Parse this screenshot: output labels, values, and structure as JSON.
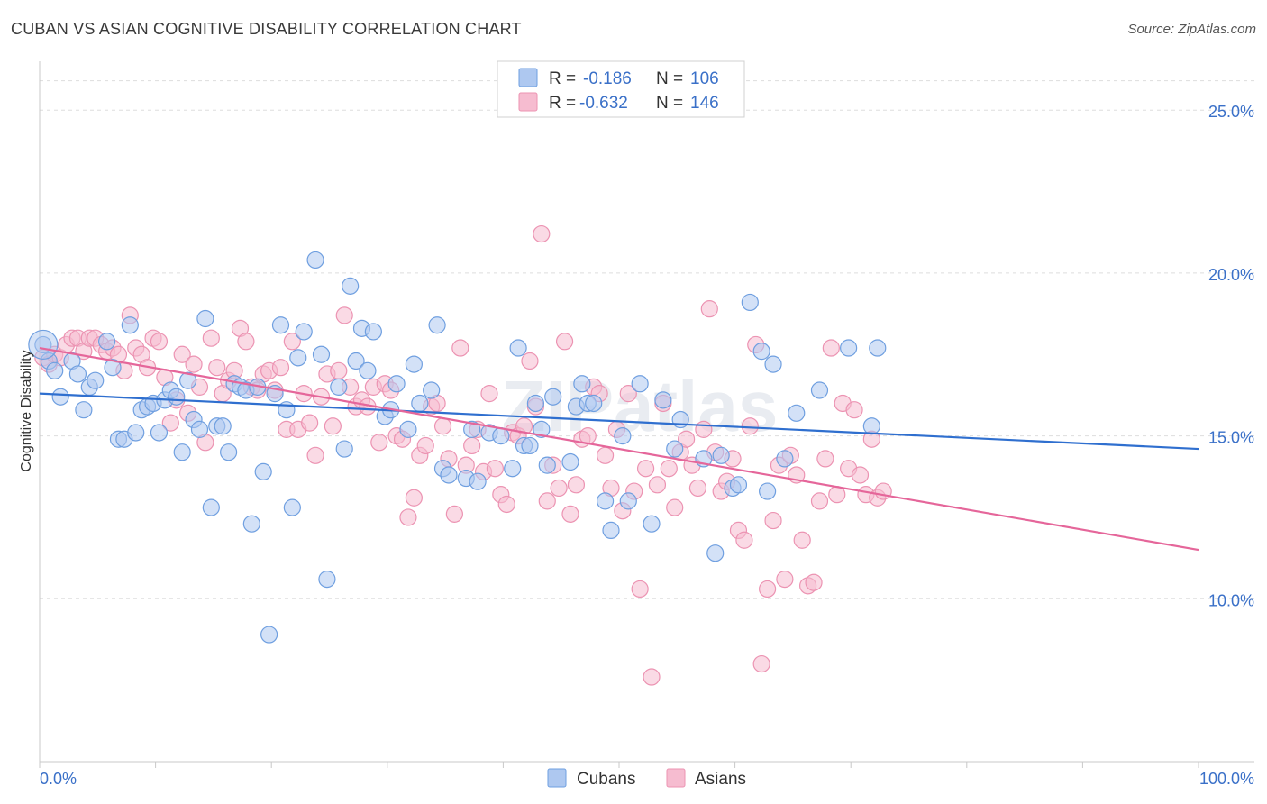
{
  "header": {
    "title": "CUBAN VS ASIAN COGNITIVE DISABILITY CORRELATION CHART",
    "source": "Source: ZipAtlas.com"
  },
  "colors": {
    "cubans_fill": "#aec8f0",
    "cubans_stroke": "#6f9fe0",
    "cubans_line": "#2f6fcf",
    "asians_fill": "#f6bcd0",
    "asians_stroke": "#ec93b2",
    "asians_line": "#e5669a",
    "tick_label": "#3a70c8",
    "grid": "#dddddd"
  },
  "legend": {
    "rows": [
      {
        "r_label": "R =",
        "r_value": "-0.186",
        "n_label": "N =",
        "n_value": "106"
      },
      {
        "r_label": "R =",
        "r_value": "-0.632",
        "n_label": "N =",
        "n_value": "146"
      }
    ]
  },
  "chart_data": {
    "type": "scatter",
    "title": "CUBAN VS ASIAN COGNITIVE DISABILITY CORRELATION CHART",
    "xlabel": "",
    "ylabel": "Cognitive Disability",
    "xlim": [
      0,
      100
    ],
    "ylim": [
      5,
      26.5
    ],
    "x_tick_labels": [
      "0.0%",
      "100.0%"
    ],
    "y_ticks": [
      10,
      15,
      20,
      25
    ],
    "y_tick_labels": [
      "10.0%",
      "15.0%",
      "20.0%",
      "25.0%"
    ],
    "grid": true,
    "legend_position": "top-center",
    "watermark": "ZIPatlas",
    "series": [
      {
        "name": "Cubans",
        "r": -0.186,
        "n": 106,
        "trend": [
          [
            0,
            16.3
          ],
          [
            100,
            14.6
          ]
        ],
        "points": [
          [
            0.3,
            17.8
          ],
          [
            0.8,
            17.3
          ],
          [
            1.3,
            17.0
          ],
          [
            1.8,
            16.2
          ],
          [
            2.8,
            17.3
          ],
          [
            3.3,
            16.9
          ],
          [
            3.8,
            15.8
          ],
          [
            4.3,
            16.5
          ],
          [
            4.8,
            16.7
          ],
          [
            5.8,
            17.9
          ],
          [
            6.3,
            17.1
          ],
          [
            6.8,
            14.9
          ],
          [
            7.3,
            14.9
          ],
          [
            7.8,
            18.4
          ],
          [
            8.3,
            15.1
          ],
          [
            8.8,
            15.8
          ],
          [
            9.3,
            15.9
          ],
          [
            9.8,
            16.0
          ],
          [
            10.3,
            15.1
          ],
          [
            10.8,
            16.1
          ],
          [
            11.3,
            16.4
          ],
          [
            11.8,
            16.2
          ],
          [
            12.3,
            14.5
          ],
          [
            12.8,
            16.7
          ],
          [
            13.3,
            15.5
          ],
          [
            13.8,
            15.2
          ],
          [
            14.3,
            18.6
          ],
          [
            14.8,
            12.8
          ],
          [
            15.3,
            15.3
          ],
          [
            15.8,
            15.3
          ],
          [
            16.3,
            14.5
          ],
          [
            16.8,
            16.6
          ],
          [
            17.3,
            16.5
          ],
          [
            17.8,
            16.4
          ],
          [
            18.3,
            12.3
          ],
          [
            18.8,
            16.5
          ],
          [
            19.3,
            13.9
          ],
          [
            19.8,
            8.9
          ],
          [
            20.3,
            16.3
          ],
          [
            20.8,
            18.4
          ],
          [
            21.3,
            15.8
          ],
          [
            21.8,
            12.8
          ],
          [
            22.3,
            17.4
          ],
          [
            22.8,
            18.2
          ],
          [
            23.8,
            20.4
          ],
          [
            24.3,
            17.5
          ],
          [
            24.8,
            10.6
          ],
          [
            25.8,
            16.5
          ],
          [
            26.3,
            14.6
          ],
          [
            26.8,
            19.6
          ],
          [
            27.3,
            17.3
          ],
          [
            27.8,
            18.3
          ],
          [
            28.3,
            17.0
          ],
          [
            28.8,
            18.2
          ],
          [
            29.8,
            15.6
          ],
          [
            30.3,
            15.8
          ],
          [
            30.8,
            16.6
          ],
          [
            31.8,
            15.2
          ],
          [
            32.3,
            17.2
          ],
          [
            32.8,
            16.0
          ],
          [
            33.8,
            16.4
          ],
          [
            34.3,
            18.4
          ],
          [
            34.8,
            14.0
          ],
          [
            35.3,
            13.8
          ],
          [
            36.8,
            13.7
          ],
          [
            37.3,
            15.2
          ],
          [
            37.8,
            13.6
          ],
          [
            38.8,
            15.1
          ],
          [
            39.8,
            15.0
          ],
          [
            40.8,
            14.0
          ],
          [
            41.3,
            17.7
          ],
          [
            41.8,
            14.7
          ],
          [
            42.3,
            14.7
          ],
          [
            42.8,
            16.0
          ],
          [
            43.3,
            15.2
          ],
          [
            43.8,
            14.1
          ],
          [
            44.3,
            16.2
          ],
          [
            45.8,
            14.2
          ],
          [
            46.3,
            15.9
          ],
          [
            46.8,
            16.6
          ],
          [
            47.3,
            16.0
          ],
          [
            47.8,
            16.0
          ],
          [
            48.8,
            13.0
          ],
          [
            49.3,
            12.1
          ],
          [
            50.3,
            15.0
          ],
          [
            50.8,
            13.0
          ],
          [
            51.8,
            16.6
          ],
          [
            52.8,
            12.3
          ],
          [
            53.8,
            16.1
          ],
          [
            54.8,
            14.6
          ],
          [
            55.3,
            15.5
          ],
          [
            57.3,
            14.3
          ],
          [
            58.3,
            11.4
          ],
          [
            58.8,
            14.4
          ],
          [
            59.8,
            13.4
          ],
          [
            60.3,
            13.5
          ],
          [
            61.3,
            19.1
          ],
          [
            62.3,
            17.6
          ],
          [
            62.8,
            13.3
          ],
          [
            63.3,
            17.2
          ],
          [
            64.3,
            14.3
          ],
          [
            65.3,
            15.7
          ],
          [
            67.3,
            16.4
          ],
          [
            69.8,
            17.7
          ],
          [
            71.8,
            15.3
          ],
          [
            72.3,
            17.7
          ]
        ]
      },
      {
        "name": "Asians",
        "r": -0.632,
        "n": 146,
        "trend": [
          [
            0,
            17.7
          ],
          [
            100,
            11.5
          ]
        ],
        "points": [
          [
            0.3,
            17.4
          ],
          [
            0.8,
            17.2
          ],
          [
            1.3,
            17.5
          ],
          [
            1.8,
            17.4
          ],
          [
            2.3,
            17.8
          ],
          [
            2.8,
            18.0
          ],
          [
            3.3,
            18.0
          ],
          [
            3.8,
            17.6
          ],
          [
            4.3,
            18.0
          ],
          [
            4.8,
            18.0
          ],
          [
            5.3,
            17.8
          ],
          [
            5.8,
            17.6
          ],
          [
            6.3,
            17.7
          ],
          [
            6.8,
            17.5
          ],
          [
            7.3,
            17.0
          ],
          [
            7.8,
            18.7
          ],
          [
            8.3,
            17.7
          ],
          [
            8.8,
            17.5
          ],
          [
            9.3,
            17.1
          ],
          [
            9.8,
            18.0
          ],
          [
            10.3,
            17.9
          ],
          [
            10.8,
            16.8
          ],
          [
            11.3,
            15.4
          ],
          [
            11.8,
            16.1
          ],
          [
            12.3,
            17.5
          ],
          [
            12.8,
            15.7
          ],
          [
            13.3,
            17.2
          ],
          [
            13.8,
            16.5
          ],
          [
            14.3,
            14.8
          ],
          [
            14.8,
            18.0
          ],
          [
            15.3,
            17.1
          ],
          [
            15.8,
            16.3
          ],
          [
            16.3,
            16.7
          ],
          [
            16.8,
            17.0
          ],
          [
            17.3,
            18.3
          ],
          [
            17.8,
            17.9
          ],
          [
            18.3,
            16.5
          ],
          [
            18.8,
            16.4
          ],
          [
            19.3,
            16.9
          ],
          [
            19.8,
            17.0
          ],
          [
            20.3,
            16.4
          ],
          [
            20.8,
            17.1
          ],
          [
            21.3,
            15.2
          ],
          [
            21.8,
            17.9
          ],
          [
            22.3,
            15.2
          ],
          [
            22.8,
            16.3
          ],
          [
            23.3,
            15.4
          ],
          [
            23.8,
            14.4
          ],
          [
            24.3,
            16.2
          ],
          [
            24.8,
            16.9
          ],
          [
            25.3,
            15.3
          ],
          [
            25.8,
            17.0
          ],
          [
            26.3,
            18.7
          ],
          [
            26.8,
            16.5
          ],
          [
            27.3,
            15.9
          ],
          [
            27.8,
            16.1
          ],
          [
            28.3,
            15.9
          ],
          [
            28.8,
            16.5
          ],
          [
            29.3,
            14.8
          ],
          [
            29.8,
            16.6
          ],
          [
            30.3,
            16.4
          ],
          [
            30.8,
            15.0
          ],
          [
            31.3,
            14.9
          ],
          [
            31.8,
            12.5
          ],
          [
            32.3,
            13.1
          ],
          [
            32.8,
            14.4
          ],
          [
            33.3,
            14.7
          ],
          [
            33.8,
            15.9
          ],
          [
            34.3,
            16.0
          ],
          [
            34.8,
            15.3
          ],
          [
            35.3,
            14.3
          ],
          [
            35.8,
            12.6
          ],
          [
            36.3,
            17.7
          ],
          [
            36.8,
            14.1
          ],
          [
            37.3,
            14.7
          ],
          [
            37.8,
            15.2
          ],
          [
            38.3,
            13.9
          ],
          [
            38.8,
            16.3
          ],
          [
            39.3,
            14.0
          ],
          [
            39.8,
            13.2
          ],
          [
            40.3,
            12.9
          ],
          [
            40.8,
            15.1
          ],
          [
            41.3,
            15.0
          ],
          [
            41.8,
            15.3
          ],
          [
            42.3,
            17.3
          ],
          [
            42.8,
            15.9
          ],
          [
            43.3,
            21.2
          ],
          [
            43.8,
            13.0
          ],
          [
            44.3,
            14.1
          ],
          [
            44.8,
            13.4
          ],
          [
            45.3,
            17.9
          ],
          [
            45.8,
            12.6
          ],
          [
            46.3,
            13.5
          ],
          [
            46.8,
            14.9
          ],
          [
            47.3,
            15.0
          ],
          [
            47.8,
            16.5
          ],
          [
            48.3,
            16.3
          ],
          [
            48.8,
            14.4
          ],
          [
            49.3,
            13.4
          ],
          [
            49.8,
            15.2
          ],
          [
            50.3,
            12.7
          ],
          [
            50.8,
            16.3
          ],
          [
            51.3,
            13.3
          ],
          [
            51.8,
            10.3
          ],
          [
            52.3,
            14.0
          ],
          [
            52.8,
            7.6
          ],
          [
            53.3,
            13.5
          ],
          [
            53.8,
            16.0
          ],
          [
            54.3,
            14.0
          ],
          [
            54.8,
            12.8
          ],
          [
            55.3,
            14.5
          ],
          [
            55.8,
            14.9
          ],
          [
            56.3,
            14.1
          ],
          [
            56.8,
            13.4
          ],
          [
            57.3,
            15.2
          ],
          [
            57.8,
            18.9
          ],
          [
            58.3,
            14.5
          ],
          [
            58.8,
            13.3
          ],
          [
            59.3,
            13.6
          ],
          [
            59.8,
            14.3
          ],
          [
            60.3,
            12.1
          ],
          [
            60.8,
            11.8
          ],
          [
            61.3,
            15.3
          ],
          [
            61.8,
            17.8
          ],
          [
            62.3,
            8.0
          ],
          [
            62.8,
            10.3
          ],
          [
            63.3,
            12.4
          ],
          [
            63.8,
            14.1
          ],
          [
            64.3,
            10.6
          ],
          [
            64.8,
            14.4
          ],
          [
            65.3,
            13.8
          ],
          [
            65.8,
            11.8
          ],
          [
            66.3,
            10.4
          ],
          [
            66.8,
            10.5
          ],
          [
            67.3,
            13.0
          ],
          [
            67.8,
            14.3
          ],
          [
            68.3,
            17.7
          ],
          [
            68.8,
            13.2
          ],
          [
            69.3,
            16.0
          ],
          [
            69.8,
            14.0
          ],
          [
            70.3,
            15.8
          ],
          [
            70.8,
            13.8
          ],
          [
            71.3,
            13.2
          ],
          [
            71.8,
            14.9
          ],
          [
            72.3,
            13.1
          ],
          [
            72.8,
            13.3
          ]
        ]
      }
    ]
  },
  "bottom_legend": {
    "items": [
      {
        "label": "Cubans"
      },
      {
        "label": "Asians"
      }
    ]
  }
}
